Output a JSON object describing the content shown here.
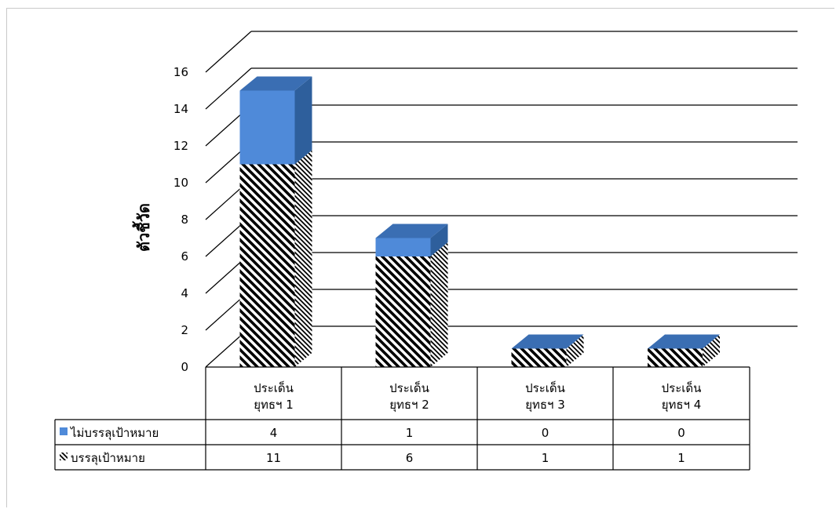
{
  "chart_data": {
    "type": "bar",
    "stacked": true,
    "three_d": true,
    "ylabel": "ตัวชี้วัด",
    "ylim": [
      0,
      16
    ],
    "yticks": [
      "0",
      "2",
      "4",
      "6",
      "8",
      "10",
      "12",
      "14",
      "16"
    ],
    "categories": [
      [
        "ประเด็น",
        "ยุทธฯ 1"
      ],
      [
        "ประเด็น",
        "ยุทธฯ 2"
      ],
      [
        "ประเด็น",
        "ยุทธฯ 3"
      ],
      [
        "ประเด็น",
        "ยุทธฯ 4"
      ]
    ],
    "series": [
      {
        "name": "บรรลุเป้าหมาย",
        "values": [
          11,
          6,
          1,
          1
        ],
        "fill": "hatched",
        "color": "#000000"
      },
      {
        "name": "ไม่บรรลุเป้าหมาย",
        "values": [
          4,
          1,
          0,
          0
        ],
        "fill": "solid",
        "color": "#4f8ad9"
      }
    ],
    "data_table": true,
    "grid": true
  }
}
